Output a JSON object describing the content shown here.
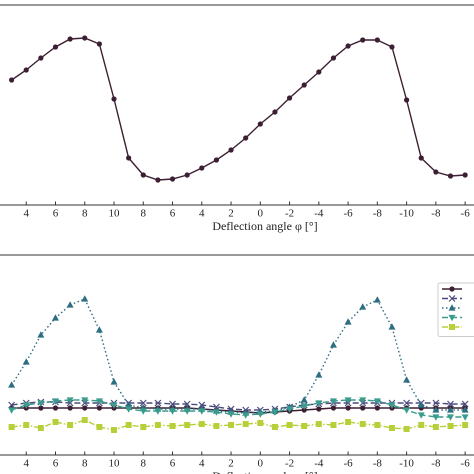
{
  "chart_data": [
    {
      "type": "line",
      "xlabel": "Deflection angle φ [°]",
      "categories": [
        null,
        "4",
        null,
        "6",
        null,
        "8",
        null,
        "10",
        null,
        "8",
        null,
        "6",
        null,
        "4",
        null,
        "2",
        null,
        "0",
        null,
        "-2",
        null,
        "-4",
        null,
        "-6",
        null,
        "-8",
        null,
        "-10",
        null,
        "-8",
        null,
        "-6"
      ],
      "ylim": [
        0,
        200
      ],
      "series": [
        {
          "color": "#3d1f33",
          "marker": "circle",
          "linestyle": "solid",
          "values": [
            125,
            135,
            147,
            158,
            166,
            167,
            161,
            106,
            47,
            30,
            25,
            26,
            30,
            37,
            45,
            55,
            67,
            81,
            93,
            107,
            120,
            133,
            147,
            159,
            165,
            165,
            158,
            105,
            47,
            33,
            29,
            30
          ]
        }
      ]
    },
    {
      "type": "line",
      "xlabel": "Deflection angle φ [°]",
      "categories": [
        null,
        "4",
        null,
        "6",
        null,
        "8",
        null,
        "10",
        null,
        "8",
        null,
        "6",
        null,
        "4",
        null,
        "2",
        null,
        "0",
        null,
        "-2",
        null,
        "-4",
        null,
        "-6",
        null,
        "-8",
        null,
        "-10",
        null,
        "-8",
        null,
        "-6"
      ],
      "ylim": [
        0,
        200
      ],
      "legend": "upper right",
      "series": [
        {
          "color": "#3d1f33",
          "marker": "circle",
          "linestyle": "solid",
          "values": [
            47,
            47,
            47,
            47,
            47,
            47,
            47,
            47,
            47,
            47,
            47,
            47,
            47,
            46,
            45,
            44,
            43,
            42,
            43,
            44,
            45,
            46,
            47,
            47,
            47,
            47,
            47,
            47,
            47,
            47,
            47,
            47
          ]
        },
        {
          "color": "#4b4a7d",
          "marker": "x",
          "linestyle": "dashed",
          "values": [
            50,
            52,
            53,
            53,
            52,
            52,
            52,
            52,
            52,
            52,
            52,
            51,
            51,
            50,
            48,
            46,
            45,
            45,
            46,
            48,
            50,
            51,
            52,
            52,
            52,
            52,
            52,
            52,
            52,
            52,
            51,
            51
          ]
        },
        {
          "color": "#2e6e82",
          "marker": "triangle-up",
          "linestyle": "dotted",
          "values": [
            70,
            93,
            120,
            137,
            150,
            156,
            125,
            73,
            50,
            47,
            46,
            46,
            46,
            46,
            44,
            43,
            42,
            43,
            44,
            48,
            55,
            80,
            110,
            133,
            148,
            155,
            128,
            75,
            50,
            45,
            45,
            45
          ]
        },
        {
          "color": "#3a9c8c",
          "marker": "triangle-down",
          "linestyle": "dashed",
          "values": [
            45,
            50,
            52,
            54,
            55,
            55,
            54,
            50,
            46,
            44,
            44,
            44,
            44,
            44,
            43,
            41,
            40,
            41,
            43,
            46,
            49,
            52,
            54,
            55,
            55,
            54,
            50,
            45,
            40,
            38,
            38,
            38
          ]
        },
        {
          "color": "#b9cf3a",
          "marker": "square",
          "linestyle": "dashdot",
          "values": [
            28,
            30,
            27,
            33,
            30,
            35,
            28,
            25,
            30,
            28,
            30,
            29,
            30,
            31,
            29,
            30,
            31,
            32,
            28,
            30,
            29,
            31,
            30,
            33,
            31,
            30,
            27,
            26,
            30,
            28,
            29,
            30
          ]
        }
      ]
    }
  ]
}
